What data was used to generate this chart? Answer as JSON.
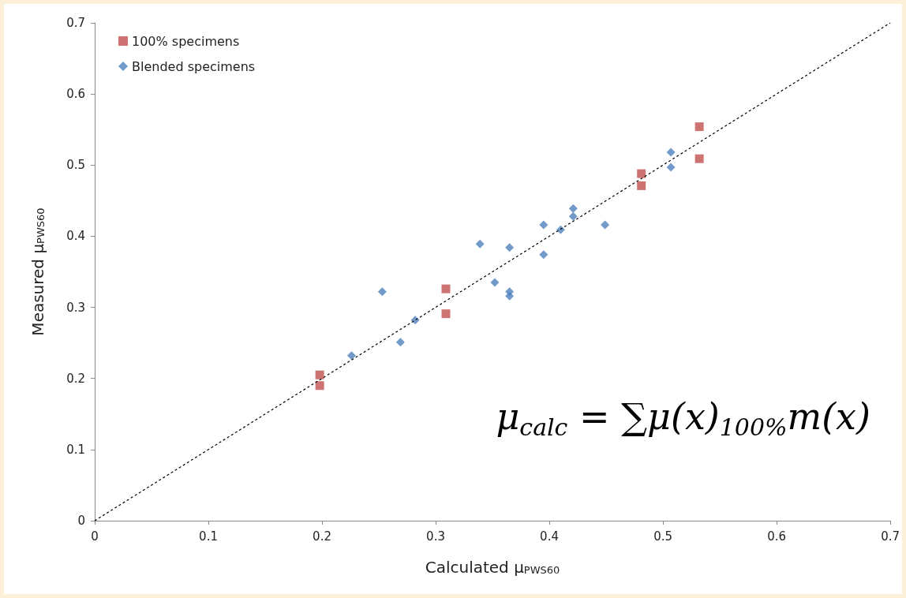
{
  "chart_data": {
    "type": "scatter",
    "xlabel": "Calculated μ$_{PWS60}$",
    "ylabel": "Measured μ$_{PWS60}$",
    "xlim": [
      0,
      0.7
    ],
    "xticks": [
      0,
      0.1,
      0.2,
      0.3,
      0.4,
      0.5,
      0.6,
      0.7
    ],
    "ylim": [
      0,
      0.7
    ],
    "yticks": [
      0,
      0.1,
      0.2,
      0.3,
      0.4,
      0.5,
      0.6,
      0.7
    ],
    "grid": false,
    "legend": "top left",
    "annotations": [
      "μ$_{calc}$ = ∑μ(x)$_{100%}$m(x)"
    ],
    "series": [
      {
        "name": "100% specimens",
        "color": "#c0504d",
        "marker": "square",
        "x": [
          0.198,
          0.198,
          0.309,
          0.309,
          0.481,
          0.481,
          0.532,
          0.532
        ],
        "values": [
          0.205,
          0.19,
          0.326,
          0.291,
          0.488,
          0.471,
          0.554,
          0.509
        ]
      },
      {
        "name": "Blended specimens",
        "color": "#4f81bd",
        "marker": "diamond",
        "x": [
          0.226,
          0.253,
          0.269,
          0.282,
          0.339,
          0.352,
          0.365,
          0.365,
          0.365,
          0.395,
          0.395,
          0.41,
          0.421,
          0.421,
          0.449,
          0.507,
          0.507
        ],
        "values": [
          0.232,
          0.322,
          0.251,
          0.282,
          0.389,
          0.335,
          0.384,
          0.322,
          0.316,
          0.416,
          0.374,
          0.409,
          0.439,
          0.428,
          0.416,
          0.518,
          0.497
        ]
      },
      {
        "type": "line",
        "color": "#000000",
        "marker": "none",
        "line_style": "dashed",
        "x": [
          0,
          0.7
        ],
        "values": [
          0,
          0.7
        ]
      }
    ]
  }
}
